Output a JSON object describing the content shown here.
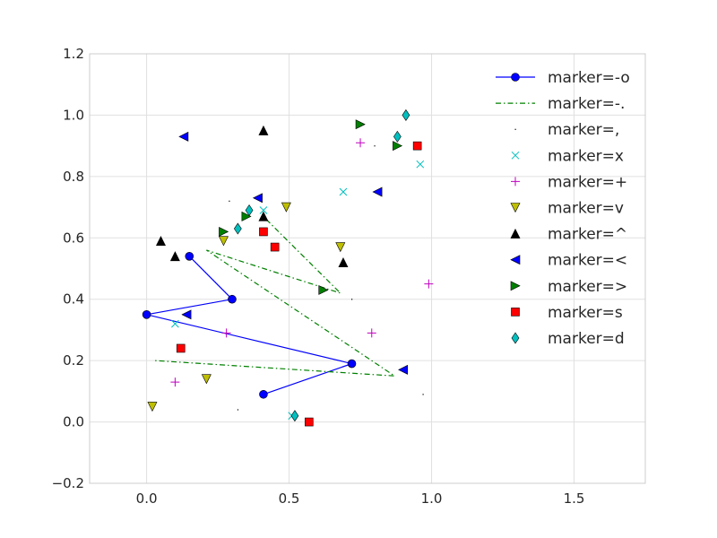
{
  "chart_data": {
    "type": "scatter",
    "title": "",
    "xlabel": "",
    "ylabel": "",
    "xlim": [
      -0.2,
      1.75
    ],
    "ylim": [
      -0.2,
      1.2
    ],
    "xticks": [
      0.0,
      0.5,
      1.0,
      1.5
    ],
    "yticks": [
      -0.2,
      0.0,
      0.2,
      0.4,
      0.6,
      0.8,
      1.0,
      1.2
    ],
    "xtick_labels": [
      "0.0",
      "0.5",
      "1.0",
      "1.5"
    ],
    "ytick_labels": [
      "−0.2",
      "0.0",
      "0.2",
      "0.4",
      "0.6",
      "0.8",
      "1.0",
      "1.2"
    ],
    "grid": true,
    "legend_position": "top-right",
    "series": [
      {
        "name": "marker=-o",
        "color": "#0000ff",
        "marker": "o",
        "line": "solid",
        "x": [
          0.15,
          0.3,
          0.0,
          0.72,
          0.41
        ],
        "y": [
          0.54,
          0.4,
          0.35,
          0.19,
          0.09
        ]
      },
      {
        "name": "marker=-.",
        "color": "#008000",
        "marker": "none",
        "line": "dashdot",
        "x": [
          0.42,
          0.68,
          0.21,
          0.87,
          0.03
        ],
        "y": [
          0.66,
          0.42,
          0.56,
          0.15,
          0.2
        ]
      },
      {
        "name": "marker=,",
        "color": "#000000",
        "marker": "pixel",
        "line": "none",
        "x": [
          0.32,
          0.8,
          0.97,
          0.72,
          0.29
        ],
        "y": [
          0.04,
          0.9,
          0.09,
          0.4,
          0.72
        ]
      },
      {
        "name": "marker=x",
        "color": "#00bfbf",
        "marker": "x",
        "line": "none",
        "x": [
          0.1,
          0.41,
          0.69,
          0.96,
          0.51
        ],
        "y": [
          0.32,
          0.69,
          0.75,
          0.84,
          0.02
        ]
      },
      {
        "name": "marker=+",
        "color": "#bf00bf",
        "marker": "+",
        "line": "none",
        "x": [
          0.1,
          0.28,
          0.75,
          0.79,
          0.99
        ],
        "y": [
          0.13,
          0.29,
          0.91,
          0.29,
          0.45
        ]
      },
      {
        "name": "marker=v",
        "color": "#bfbf00",
        "marker": "v",
        "line": "none",
        "x": [
          0.02,
          0.21,
          0.27,
          0.49,
          0.68
        ],
        "y": [
          0.05,
          0.14,
          0.59,
          0.7,
          0.57
        ]
      },
      {
        "name": "marker=^",
        "color": "#000000",
        "marker": "^",
        "line": "none",
        "x": [
          0.05,
          0.1,
          0.41,
          0.69,
          0.41
        ],
        "y": [
          0.59,
          0.54,
          0.67,
          0.52,
          0.95
        ]
      },
      {
        "name": "marker=<",
        "color": "#0000ff",
        "marker": "<",
        "line": "none",
        "x": [
          0.13,
          0.14,
          0.39,
          0.81,
          0.9
        ],
        "y": [
          0.93,
          0.35,
          0.73,
          0.75,
          0.17
        ]
      },
      {
        "name": "marker=>",
        "color": "#008000",
        "marker": ">",
        "line": "none",
        "x": [
          0.27,
          0.35,
          0.62,
          0.75,
          0.88
        ],
        "y": [
          0.62,
          0.67,
          0.43,
          0.97,
          0.9
        ]
      },
      {
        "name": "marker=s",
        "color": "#ff0000",
        "marker": "s",
        "line": "none",
        "x": [
          0.12,
          0.41,
          0.45,
          0.57,
          0.95
        ],
        "y": [
          0.24,
          0.62,
          0.57,
          0.0,
          0.9
        ]
      },
      {
        "name": "marker=d",
        "color": "#00bfbf",
        "marker": "d",
        "line": "none",
        "x": [
          0.32,
          0.36,
          0.52,
          0.88,
          0.91
        ],
        "y": [
          0.63,
          0.69,
          0.02,
          0.93,
          1.0
        ]
      }
    ]
  }
}
